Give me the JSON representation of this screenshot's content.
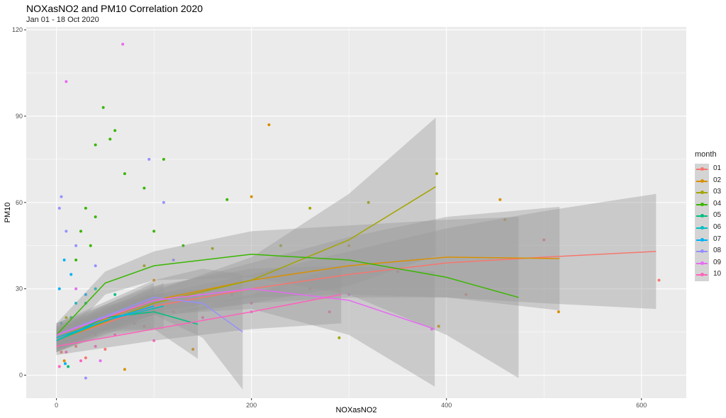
{
  "chart_data": {
    "type": "scatter",
    "title": "NOXasNO2 and PM10 Correlation 2020",
    "subtitle": "Jan 01 - 18 Oct 2020",
    "xlabel": "NOXasNO2",
    "ylabel": "PM10",
    "xlim": [
      -31,
      646
    ],
    "ylim": [
      -8,
      121
    ],
    "xticks": [
      0,
      200,
      400,
      600
    ],
    "yticks": [
      0,
      30,
      60,
      90,
      120
    ],
    "grid": true,
    "legend": {
      "title": "month",
      "position": "right"
    },
    "series": [
      {
        "name": "01",
        "color": "#F8766D",
        "smooth": [
          [
            0,
            12,
            2
          ],
          [
            100,
            24,
            2
          ],
          [
            200,
            30,
            2.5
          ],
          [
            300,
            35,
            4
          ],
          [
            400,
            39,
            6
          ],
          [
            500,
            41,
            8
          ],
          [
            615,
            43,
            10
          ]
        ],
        "points": [
          [
            5,
            8
          ],
          [
            10,
            12
          ],
          [
            20,
            10
          ],
          [
            40,
            14
          ],
          [
            60,
            18
          ],
          [
            90,
            17
          ],
          [
            120,
            22
          ],
          [
            150,
            20
          ],
          [
            180,
            28
          ],
          [
            260,
            30
          ],
          [
            350,
            36
          ],
          [
            420,
            28
          ],
          [
            500,
            47
          ],
          [
            618,
            33
          ],
          [
            30,
            6
          ],
          [
            50,
            9
          ]
        ]
      },
      {
        "name": "02",
        "color": "#D89000",
        "smooth": [
          [
            0,
            13,
            2
          ],
          [
            100,
            26,
            2
          ],
          [
            200,
            33,
            3
          ],
          [
            300,
            38,
            5
          ],
          [
            400,
            41,
            7
          ],
          [
            516,
            40.5,
            9
          ]
        ],
        "points": [
          [
            8,
            5
          ],
          [
            25,
            15
          ],
          [
            60,
            22
          ],
          [
            100,
            33
          ],
          [
            150,
            28
          ],
          [
            200,
            62
          ],
          [
            218,
            87
          ],
          [
            300,
            45
          ],
          [
            392,
            17
          ],
          [
            455,
            61
          ],
          [
            460,
            54
          ],
          [
            515,
            22
          ],
          [
            140,
            9
          ],
          [
            70,
            2
          ]
        ]
      },
      {
        "name": "03",
        "color": "#A3A500",
        "smooth": [
          [
            0,
            12,
            2
          ],
          [
            100,
            25,
            2
          ],
          [
            200,
            33,
            4
          ],
          [
            300,
            47,
            8
          ],
          [
            389,
            65.5,
            12
          ]
        ],
        "points": [
          [
            10,
            20
          ],
          [
            40,
            30
          ],
          [
            90,
            38
          ],
          [
            160,
            44
          ],
          [
            230,
            45
          ],
          [
            260,
            58
          ],
          [
            320,
            60
          ],
          [
            390,
            70
          ],
          [
            290,
            13
          ]
        ]
      },
      {
        "name": "04",
        "color": "#39B600",
        "smooth": [
          [
            0,
            14,
            2
          ],
          [
            50,
            32,
            2
          ],
          [
            100,
            38,
            2.5
          ],
          [
            200,
            42,
            4
          ],
          [
            300,
            40,
            6
          ],
          [
            400,
            34,
            10
          ],
          [
            474,
            27,
            14
          ]
        ],
        "points": [
          [
            20,
            40
          ],
          [
            30,
            58
          ],
          [
            40,
            80
          ],
          [
            48,
            93
          ],
          [
            55,
            82
          ],
          [
            60,
            85
          ],
          [
            40,
            55
          ],
          [
            70,
            70
          ],
          [
            90,
            65
          ],
          [
            110,
            75
          ],
          [
            130,
            45
          ],
          [
            175,
            61
          ],
          [
            100,
            50
          ],
          [
            25,
            50
          ],
          [
            35,
            45
          ]
        ]
      },
      {
        "name": "05",
        "color": "#00BF7D",
        "smooth": [
          [
            0,
            12,
            2
          ],
          [
            50,
            20,
            2
          ],
          [
            100,
            22,
            3
          ],
          [
            145,
            17.7,
            6
          ]
        ],
        "points": [
          [
            5,
            10
          ],
          [
            15,
            20
          ],
          [
            30,
            25
          ],
          [
            60,
            28
          ],
          [
            90,
            22
          ],
          [
            12,
            3
          ]
        ]
      },
      {
        "name": "06",
        "color": "#00BFC4",
        "smooth": [
          [
            0,
            12,
            2
          ],
          [
            50,
            19,
            2
          ],
          [
            110,
            24,
            4
          ]
        ],
        "points": [
          [
            5,
            18
          ],
          [
            20,
            25
          ],
          [
            40,
            30
          ],
          [
            70,
            22
          ],
          [
            100,
            24
          ]
        ]
      },
      {
        "name": "07",
        "color": "#00B0F6",
        "smooth": [
          [
            0,
            13,
            2
          ],
          [
            60,
            20,
            3
          ],
          [
            100,
            24,
            4
          ]
        ],
        "points": [
          [
            3,
            30
          ],
          [
            8,
            40
          ],
          [
            15,
            35
          ],
          [
            30,
            28
          ],
          [
            60,
            20
          ],
          [
            9,
            4
          ]
        ]
      },
      {
        "name": "08",
        "color": "#9590FF",
        "smooth": [
          [
            0,
            14,
            2
          ],
          [
            100,
            27,
            3
          ],
          [
            150,
            25,
            6
          ],
          [
            191,
            15,
            10
          ]
        ],
        "points": [
          [
            5,
            62
          ],
          [
            3,
            58
          ],
          [
            10,
            50
          ],
          [
            20,
            45
          ],
          [
            40,
            38
          ],
          [
            95,
            75
          ],
          [
            110,
            60
          ],
          [
            150,
            28
          ],
          [
            30,
            -1
          ],
          [
            120,
            40
          ]
        ]
      },
      {
        "name": "09",
        "color": "#E76BF3",
        "smooth": [
          [
            0,
            14,
            2
          ],
          [
            100,
            26,
            2.5
          ],
          [
            200,
            30,
            3.5
          ],
          [
            300,
            26,
            6
          ],
          [
            388,
            16,
            10
          ]
        ],
        "points": [
          [
            10,
            102
          ],
          [
            68,
            115
          ],
          [
            20,
            30
          ],
          [
            50,
            20
          ],
          [
            80,
            25
          ],
          [
            200,
            22
          ],
          [
            300,
            28
          ],
          [
            385,
            16
          ],
          [
            45,
            5
          ]
        ]
      },
      {
        "name": "10",
        "color": "#FF62BC",
        "smooth": [
          [
            0,
            10,
            1.5
          ],
          [
            100,
            16,
            2
          ],
          [
            200,
            22,
            3
          ],
          [
            292,
            28,
            5
          ]
        ],
        "points": [
          [
            3,
            3
          ],
          [
            10,
            8
          ],
          [
            20,
            12
          ],
          [
            40,
            10
          ],
          [
            60,
            14
          ],
          [
            80,
            18
          ],
          [
            100,
            12
          ],
          [
            150,
            20
          ],
          [
            200,
            25
          ],
          [
            280,
            22
          ],
          [
            25,
            5
          ]
        ]
      }
    ]
  }
}
